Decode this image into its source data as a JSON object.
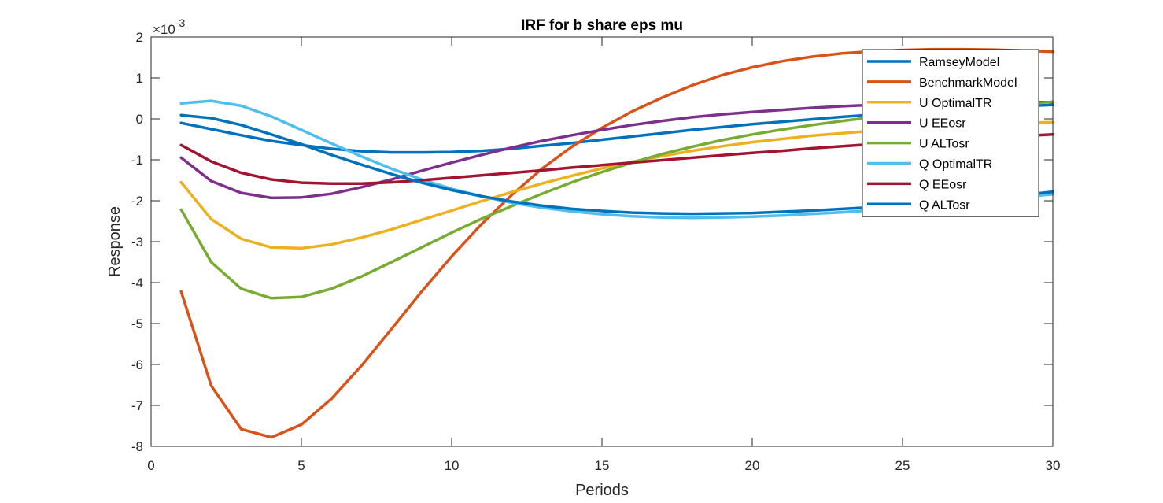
{
  "chart_data": {
    "type": "line",
    "title": "IRF for b share eps mu",
    "xlabel": "Periods",
    "ylabel": "Response",
    "exponent_label": "×10",
    "exponent_power": "-3",
    "xlim": [
      0,
      30
    ],
    "ylim": [
      -8,
      2
    ],
    "xticks": [
      0,
      5,
      10,
      15,
      20,
      25,
      30
    ],
    "yticks": [
      -8,
      -7,
      -6,
      -5,
      -4,
      -3,
      -2,
      -1,
      0,
      1,
      2
    ],
    "grid": false,
    "legend_position": "top-right",
    "x": [
      1,
      2,
      3,
      4,
      5,
      6,
      7,
      8,
      9,
      10,
      11,
      12,
      13,
      14,
      15,
      16,
      17,
      18,
      19,
      20,
      21,
      22,
      23,
      24,
      25,
      26,
      27,
      28,
      29,
      30
    ],
    "series": [
      {
        "name": "RamseyModel",
        "color": "#0072BD",
        "values": [
          -0.1,
          -0.25,
          -0.4,
          -0.54,
          -0.64,
          -0.73,
          -0.79,
          -0.82,
          -0.82,
          -0.81,
          -0.78,
          -0.73,
          -0.66,
          -0.59,
          -0.51,
          -0.43,
          -0.35,
          -0.27,
          -0.2,
          -0.13,
          -0.07,
          -0.01,
          0.05,
          0.1,
          0.15,
          0.2,
          0.24,
          0.28,
          0.31,
          0.34
        ]
      },
      {
        "name": "BenchmarkModel",
        "color": "#D95319",
        "values": [
          -4.22,
          -6.52,
          -7.58,
          -7.78,
          -7.47,
          -6.84,
          -6.03,
          -5.13,
          -4.22,
          -3.36,
          -2.57,
          -1.86,
          -1.22,
          -0.68,
          -0.22,
          0.18,
          0.52,
          0.82,
          1.07,
          1.26,
          1.41,
          1.52,
          1.6,
          1.65,
          1.68,
          1.7,
          1.7,
          1.69,
          1.67,
          1.64
        ]
      },
      {
        "name": "U OptimalTR",
        "color": "#EDB120",
        "values": [
          -1.55,
          -2.45,
          -2.93,
          -3.14,
          -3.16,
          -3.07,
          -2.9,
          -2.7,
          -2.47,
          -2.24,
          -2.01,
          -1.79,
          -1.58,
          -1.39,
          -1.21,
          -1.05,
          -0.91,
          -0.78,
          -0.67,
          -0.57,
          -0.49,
          -0.41,
          -0.35,
          -0.29,
          -0.24,
          -0.2,
          -0.16,
          -0.13,
          -0.1,
          -0.08
        ]
      },
      {
        "name": "U EEosr",
        "color": "#7E2F8E",
        "values": [
          -0.95,
          -1.52,
          -1.81,
          -1.93,
          -1.92,
          -1.83,
          -1.67,
          -1.48,
          -1.27,
          -1.07,
          -0.88,
          -0.7,
          -0.54,
          -0.4,
          -0.27,
          -0.15,
          -0.05,
          0.04,
          0.11,
          0.17,
          0.22,
          0.27,
          0.31,
          0.34,
          0.36,
          0.38,
          0.39,
          0.4,
          0.41,
          0.41
        ]
      },
      {
        "name": "U ALTosr",
        "color": "#77AC30",
        "values": [
          -2.22,
          -3.5,
          -4.15,
          -4.38,
          -4.35,
          -4.15,
          -3.85,
          -3.5,
          -3.14,
          -2.78,
          -2.44,
          -2.13,
          -1.83,
          -1.55,
          -1.3,
          -1.07,
          -0.86,
          -0.68,
          -0.52,
          -0.38,
          -0.26,
          -0.15,
          -0.05,
          0.04,
          0.12,
          0.19,
          0.25,
          0.31,
          0.36,
          0.42
        ]
      },
      {
        "name": "Q OptimalTR",
        "color": "#4DBEEE",
        "values": [
          0.38,
          0.44,
          0.32,
          0.06,
          -0.27,
          -0.6,
          -0.92,
          -1.22,
          -1.48,
          -1.71,
          -1.89,
          -2.05,
          -2.17,
          -2.26,
          -2.33,
          -2.38,
          -2.41,
          -2.42,
          -2.41,
          -2.39,
          -2.36,
          -2.32,
          -2.28,
          -2.23,
          -2.19,
          -2.12,
          -2.05,
          -1.98,
          -1.91,
          -1.84
        ]
      },
      {
        "name": "Q EEosr",
        "color": "#A2142F",
        "values": [
          -0.64,
          -1.04,
          -1.32,
          -1.48,
          -1.56,
          -1.58,
          -1.58,
          -1.55,
          -1.5,
          -1.44,
          -1.38,
          -1.32,
          -1.26,
          -1.19,
          -1.13,
          -1.07,
          -1.01,
          -0.95,
          -0.89,
          -0.83,
          -0.78,
          -0.72,
          -0.67,
          -0.62,
          -0.58,
          -0.54,
          -0.5,
          -0.46,
          -0.42,
          -0.38
        ]
      },
      {
        "name": "Q ALTosr",
        "color": "#0072BD",
        "values": [
          0.09,
          0.02,
          -0.15,
          -0.38,
          -0.62,
          -0.88,
          -1.12,
          -1.35,
          -1.56,
          -1.74,
          -1.89,
          -2.02,
          -2.12,
          -2.2,
          -2.25,
          -2.29,
          -2.31,
          -2.32,
          -2.31,
          -2.3,
          -2.27,
          -2.24,
          -2.2,
          -2.16,
          -2.11,
          -2.06,
          -2.0,
          -1.94,
          -1.86,
          -1.78
        ]
      }
    ]
  }
}
